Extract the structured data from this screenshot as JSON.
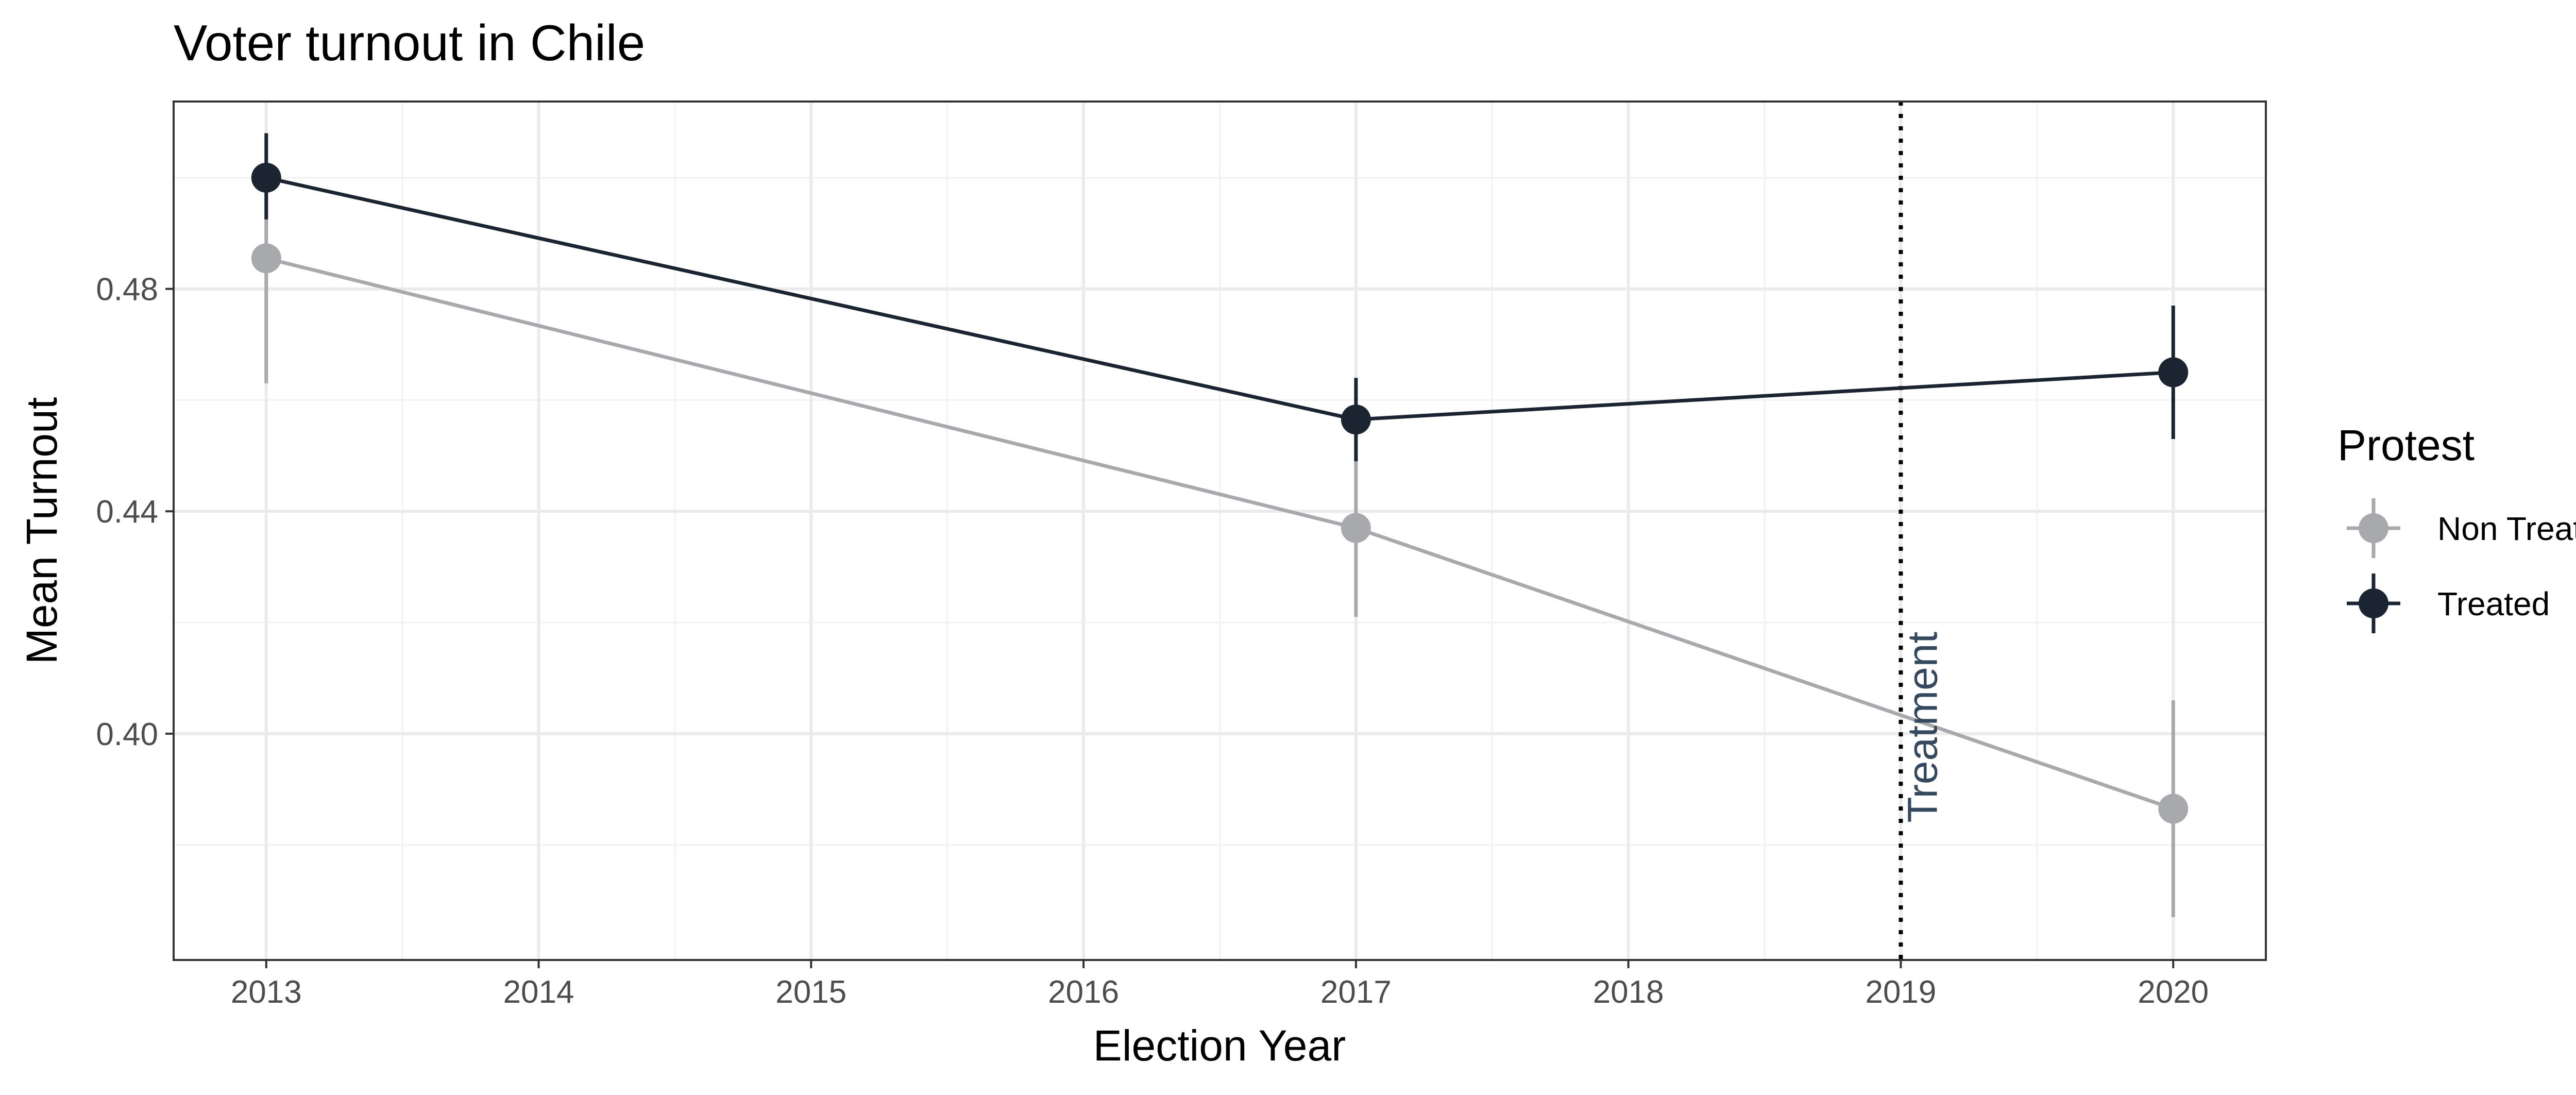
{
  "chart_data": {
    "type": "line",
    "title": "Voter turnout in Chile",
    "xlabel": "Election Year",
    "ylabel": "Mean Turnout",
    "xlim": [
      2012.66,
      2020.34
    ],
    "ylim": [
      0.3593,
      0.5137
    ],
    "x_ticks": [
      2013,
      2014,
      2015,
      2016,
      2017,
      2018,
      2019,
      2020
    ],
    "y_ticks": [
      0.4,
      0.44,
      0.48
    ],
    "y_tick_labels": [
      "0.40",
      "0.44",
      "0.48"
    ],
    "grid": true,
    "legend": {
      "title": "Protest",
      "placement": "right"
    },
    "series": [
      {
        "name": "Non Treated",
        "color": "#a7a9ac",
        "x": [
          2013,
          2017,
          2020
        ],
        "y": [
          0.4855,
          0.437,
          0.3865
        ],
        "err_low": [
          0.463,
          0.421,
          0.367
        ],
        "err_high": [
          0.4975,
          0.4495,
          0.406
        ]
      },
      {
        "name": "Treated",
        "color": "#1b2431",
        "x": [
          2013,
          2017,
          2020
        ],
        "y": [
          0.5,
          0.4565,
          0.465
        ],
        "err_low": [
          0.4925,
          0.449,
          0.453
        ],
        "err_high": [
          0.508,
          0.464,
          0.477
        ]
      }
    ],
    "reference_line": {
      "x": 2019,
      "style": "dotted",
      "color": "#000000"
    },
    "annotation": {
      "text": "Treatment",
      "x": 2019,
      "y": 0.384,
      "color": "#34495e"
    }
  }
}
